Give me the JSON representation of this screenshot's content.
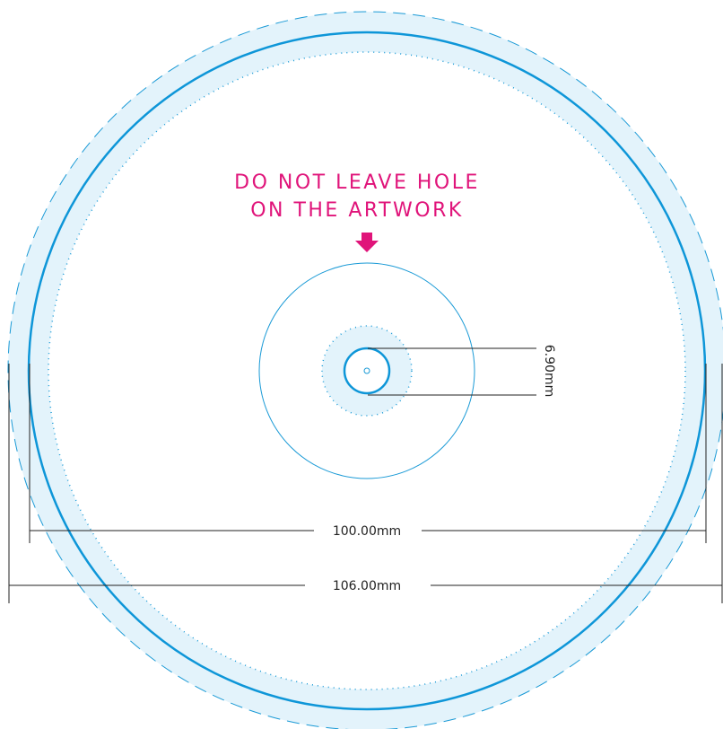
{
  "warning": {
    "line1": "DO NOT LEAVE HOLE",
    "line2": "ON THE ARTWORK"
  },
  "dimensions": {
    "hole": "6.90mm",
    "inner": "100.00mm",
    "outer": "106.00mm"
  }
}
